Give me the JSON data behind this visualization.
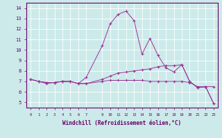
{
  "xlabel": "Windchill (Refroidissement éolien,°C)",
  "x_ticks": [
    0,
    1,
    2,
    3,
    4,
    5,
    6,
    7,
    9,
    10,
    11,
    12,
    13,
    14,
    15,
    16,
    17,
    18,
    19,
    20,
    21,
    22,
    23
  ],
  "ylim": [
    4.5,
    14.5
  ],
  "xlim": [
    -0.5,
    23.5
  ],
  "yticks": [
    5,
    6,
    7,
    8,
    9,
    10,
    11,
    12,
    13,
    14
  ],
  "bg_color": "#cceaea",
  "line_color": "#993399",
  "line1_x": [
    0,
    1,
    2,
    3,
    4,
    5,
    6,
    7,
    9,
    10,
    11,
    12,
    13,
    14,
    15,
    16,
    17,
    18,
    19,
    20,
    21,
    22,
    23
  ],
  "line1_y": [
    7.2,
    7.0,
    6.8,
    6.9,
    7.0,
    7.0,
    6.8,
    7.4,
    10.4,
    12.5,
    13.4,
    13.7,
    12.8,
    9.6,
    11.1,
    9.5,
    8.3,
    7.9,
    8.6,
    7.0,
    6.4,
    6.5,
    4.9
  ],
  "line2_x": [
    0,
    1,
    2,
    3,
    4,
    5,
    6,
    7,
    9,
    10,
    11,
    12,
    13,
    14,
    15,
    16,
    17,
    18,
    19,
    20,
    21,
    22,
    23
  ],
  "line2_y": [
    7.2,
    7.0,
    6.9,
    6.9,
    7.0,
    7.0,
    6.8,
    6.8,
    7.2,
    7.5,
    7.8,
    7.9,
    8.0,
    8.1,
    8.2,
    8.4,
    8.5,
    8.5,
    8.6,
    7.0,
    6.4,
    6.5,
    6.5
  ],
  "line3_x": [
    0,
    1,
    2,
    3,
    4,
    5,
    6,
    7,
    9,
    10,
    11,
    12,
    13,
    14,
    15,
    16,
    17,
    18,
    19,
    20,
    21,
    22,
    23
  ],
  "line3_y": [
    7.2,
    7.0,
    6.9,
    6.9,
    7.0,
    7.0,
    6.8,
    6.8,
    7.0,
    7.1,
    7.1,
    7.1,
    7.1,
    7.1,
    7.0,
    7.0,
    7.0,
    7.0,
    7.0,
    6.9,
    6.5,
    6.5,
    4.9
  ]
}
